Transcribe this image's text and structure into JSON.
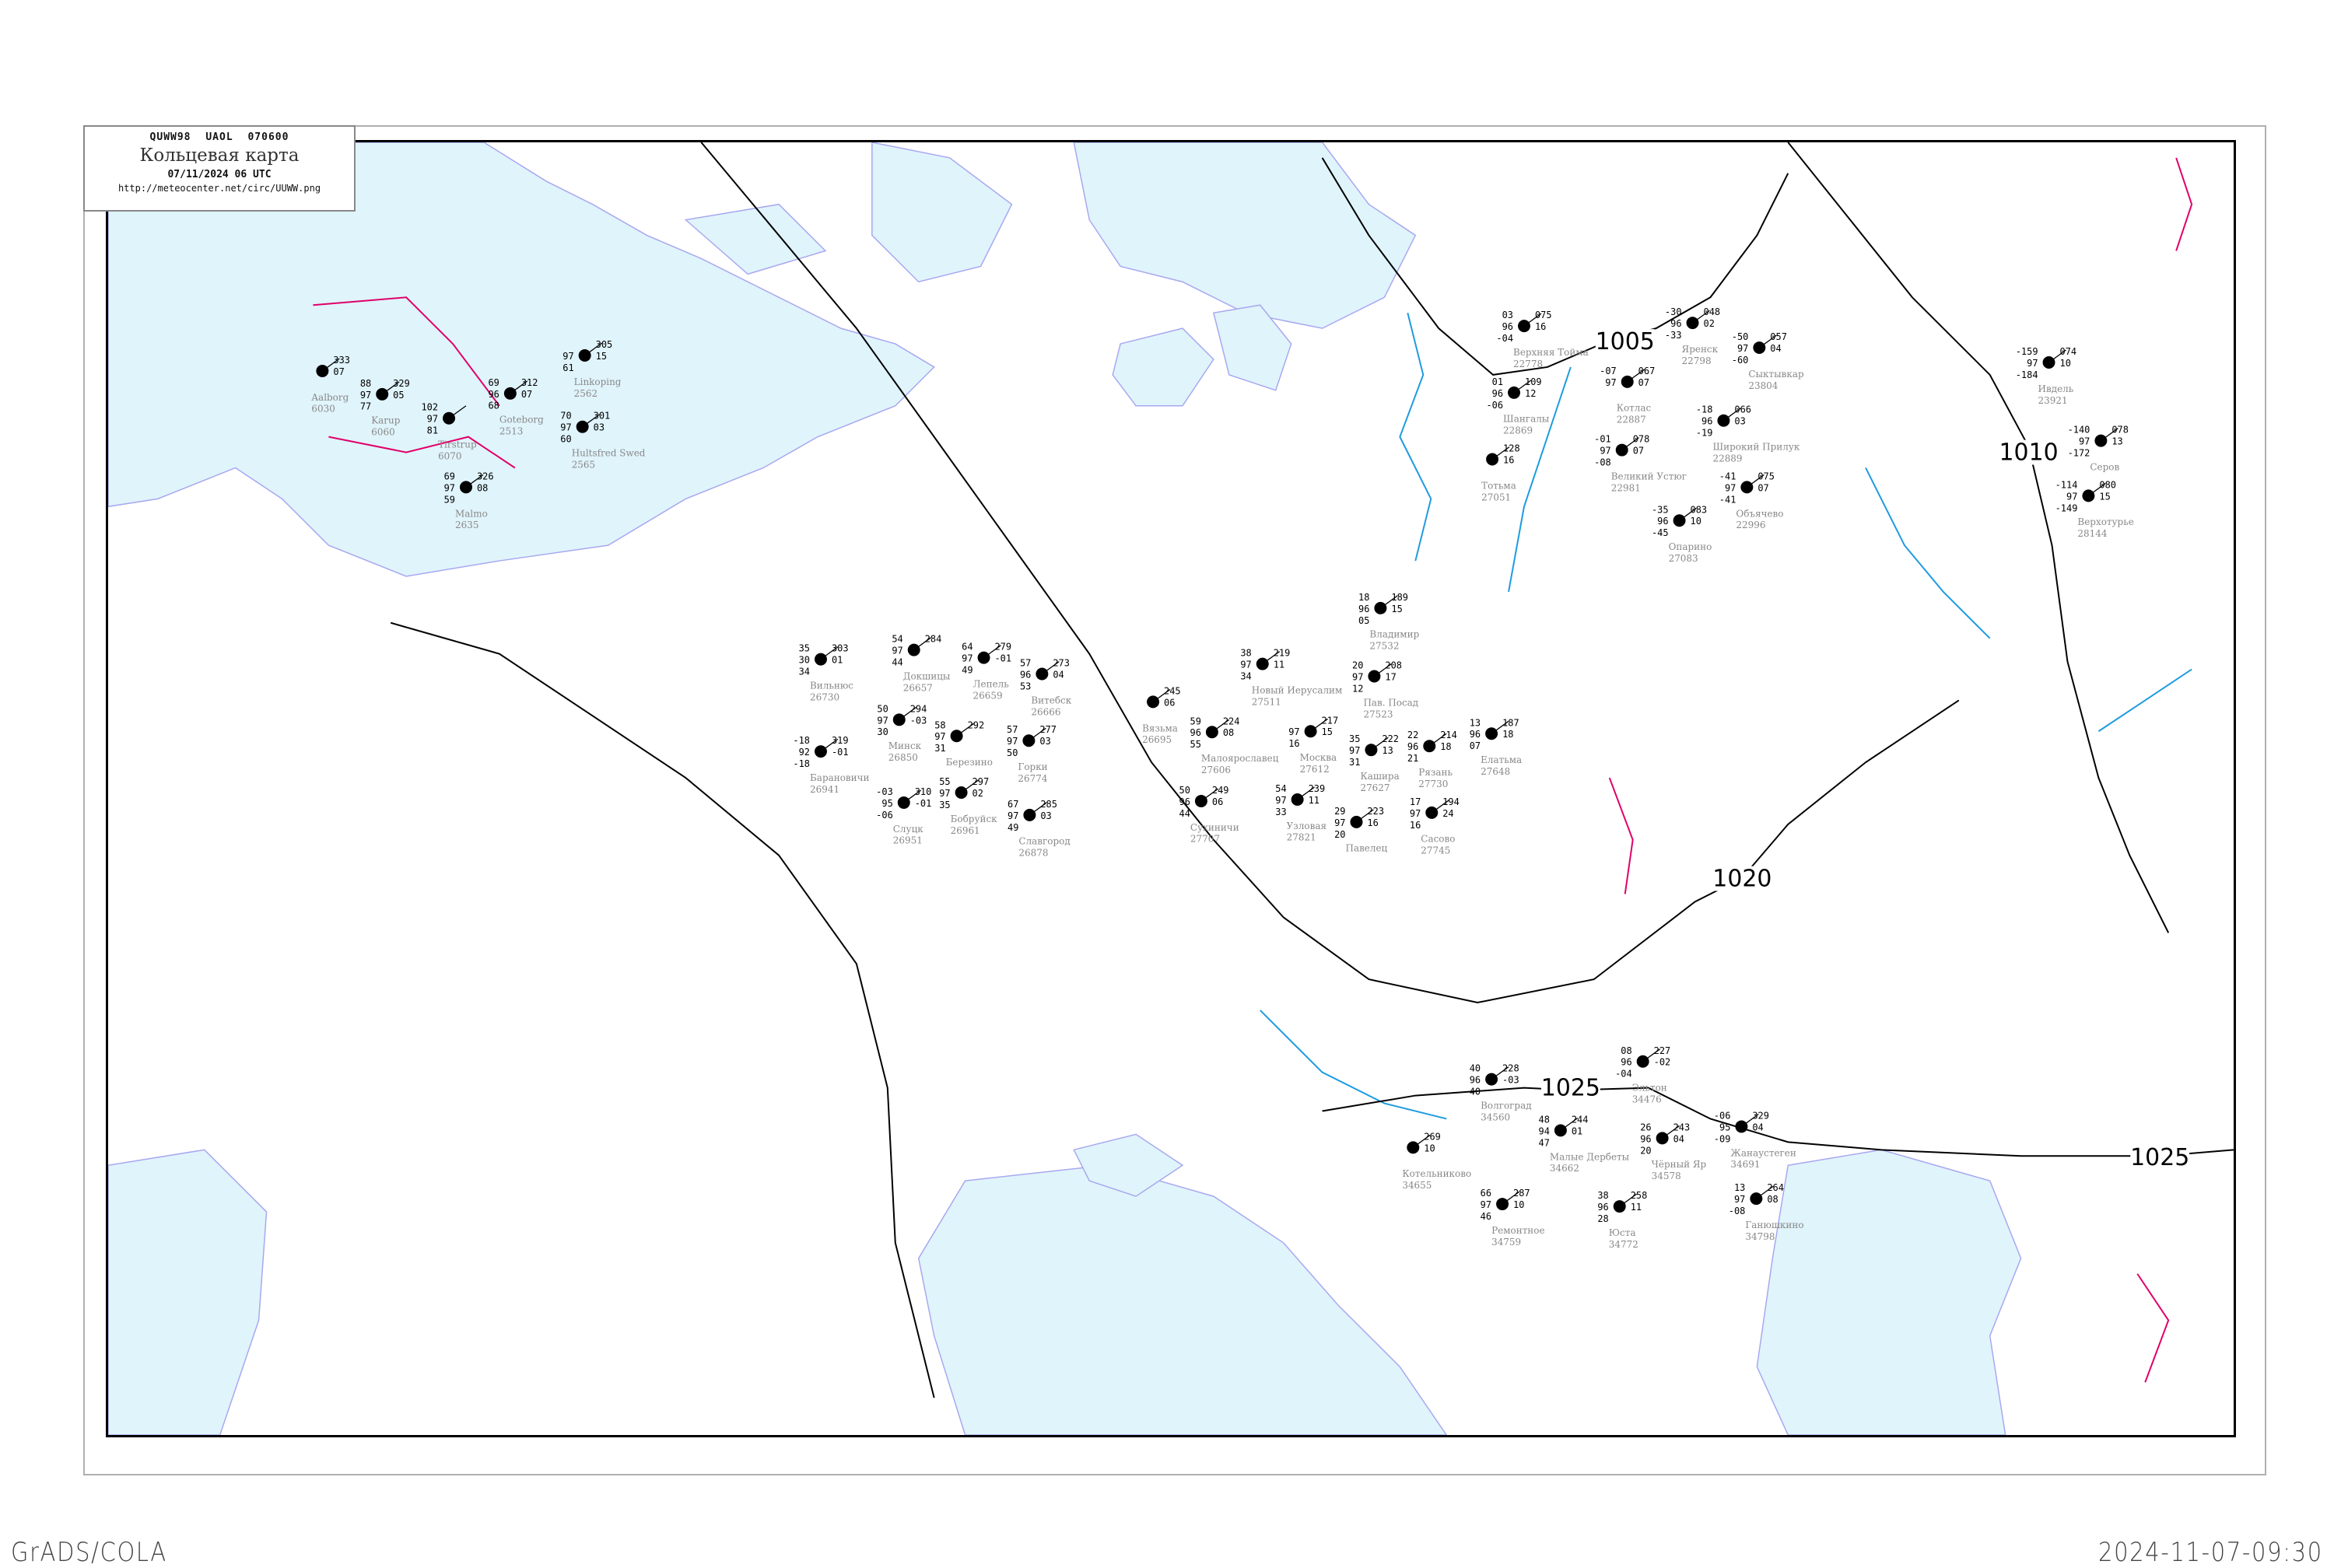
{
  "header": {
    "code_line": "QUWW98   UAOL   070600",
    "title": "Кольцевая карта",
    "date": "07/11/2024 06 UTC",
    "url": "http://meteocenter.net/circ/UUWW.png"
  },
  "footer": {
    "left": "GrADS/COLA",
    "right": "2024-11-07-09:30"
  },
  "colors": {
    "water": "#e0f4fb",
    "coast": "#a8a8f0",
    "isobar": "#000000",
    "front": "#e0006a",
    "river": "#1e9be0",
    "station_name": "#888888"
  },
  "isobars": [
    {
      "label": "1005"
    },
    {
      "label": "1010"
    },
    {
      "label": "1020"
    },
    {
      "label": "1025"
    },
    {
      "label": "1025"
    }
  ],
  "stations": [
    {
      "name": "Верхняя Тойма",
      "id": "22778",
      "t": "03",
      "td": "-04",
      "vis": "96",
      "p": "075",
      "tend": "16"
    },
    {
      "name": "Яренск",
      "id": "22798",
      "t": "-30",
      "td": "-33",
      "vis": "96",
      "p": "048",
      "tend": "02"
    },
    {
      "name": "Сыктывкар",
      "id": "23804",
      "t": "-50",
      "td": "-60",
      "vis": "97",
      "p": "057",
      "tend": "04"
    },
    {
      "name": "Шангалы",
      "id": "22869",
      "t": "01",
      "td": "-06",
      "vis": "96",
      "p": "109",
      "tend": "12"
    },
    {
      "name": "Котлас",
      "id": "22887",
      "t": "-07",
      "td": "",
      "vis": "97",
      "p": "067",
      "tend": "07"
    },
    {
      "name": "Великий Устюг",
      "id": "22981",
      "t": "-01",
      "td": "-08",
      "vis": "97",
      "p": "078",
      "tend": "07"
    },
    {
      "name": "Широкий Прилук",
      "id": "22889",
      "t": "-18",
      "td": "-19",
      "vis": "96",
      "p": "066",
      "tend": "03"
    },
    {
      "name": "Объячево",
      "id": "22996",
      "t": "-41",
      "td": "-41",
      "vis": "97",
      "p": "075",
      "tend": "07"
    },
    {
      "name": "Опарино",
      "id": "27083",
      "t": "-35",
      "td": "-45",
      "vis": "96",
      "p": "083",
      "tend": "10"
    },
    {
      "name": "Тотьма",
      "id": "27051",
      "t": "",
      "td": "",
      "vis": "",
      "p": "128",
      "tend": "16"
    },
    {
      "name": "Вильнюс",
      "id": "26730",
      "t": "35",
      "td": "34",
      "vis": "30",
      "p": "303",
      "tend": "01"
    },
    {
      "name": "Минск",
      "id": "26850",
      "t": "50",
      "td": "30",
      "vis": "97",
      "p": "294",
      "tend": "-03"
    },
    {
      "name": "Березино",
      "id": "",
      "t": "58",
      "td": "31",
      "vis": "97",
      "p": "292",
      "tend": ""
    },
    {
      "name": "Докшицы",
      "id": "26657",
      "t": "54",
      "td": "44",
      "vis": "97",
      "p": "284",
      "tend": ""
    },
    {
      "name": "Лепель",
      "id": "26659",
      "t": "64",
      "td": "49",
      "vis": "97",
      "p": "279",
      "tend": "-01"
    },
    {
      "name": "Витебск",
      "id": "26666",
      "t": "57",
      "td": "53",
      "vis": "96",
      "p": "273",
      "tend": "04"
    },
    {
      "name": "Барановичи",
      "id": "26941",
      "t": "-18",
      "td": "-18",
      "vis": "92",
      "p": "319",
      "tend": "-01"
    },
    {
      "name": "Слуцк",
      "id": "26951",
      "t": "-03",
      "td": "-06",
      "vis": "95",
      "p": "310",
      "tend": "-01"
    },
    {
      "name": "Бобруйск",
      "id": "26961",
      "t": "55",
      "td": "35",
      "vis": "97",
      "p": "297",
      "tend": "02"
    },
    {
      "name": "Горки",
      "id": "26774",
      "t": "57",
      "td": "50",
      "vis": "97",
      "p": "277",
      "tend": "03"
    },
    {
      "name": "Славгород",
      "id": "26878",
      "t": "67",
      "td": "49",
      "vis": "97",
      "p": "285",
      "tend": "03"
    },
    {
      "name": "Aalborg",
      "id": "6030",
      "t": "",
      "td": "",
      "vis": "",
      "p": "333",
      "tend": "07"
    },
    {
      "name": "Karup",
      "id": "6060",
      "t": "88",
      "td": "77",
      "vis": "97",
      "p": "329",
      "tend": "05"
    },
    {
      "name": "Tirstrup",
      "id": "6070",
      "t": "102",
      "td": "81",
      "vis": "97",
      "p": "",
      "tend": ""
    },
    {
      "name": "Goteborg",
      "id": "2513",
      "t": "69",
      "td": "68",
      "vis": "96",
      "p": "312",
      "tend": "07"
    },
    {
      "name": "Linkoping",
      "id": "2562",
      "t": "",
      "td": "61",
      "vis": "97",
      "p": "305",
      "tend": "15"
    },
    {
      "name": "Hultsfred Swed",
      "id": "2565",
      "t": "70",
      "td": "60",
      "vis": "97",
      "p": "301",
      "tend": "03"
    },
    {
      "name": "Malmo",
      "id": "2635",
      "t": "69",
      "td": "59",
      "vis": "97",
      "p": "326",
      "tend": "08"
    },
    {
      "name": "Ивдель",
      "id": "23921",
      "t": "-159",
      "td": "-184",
      "vis": "97",
      "p": "074",
      "tend": "10"
    },
    {
      "name": "Серов",
      "id": "",
      "t": "-140",
      "td": "-172",
      "vis": "97",
      "p": "078",
      "tend": "13"
    },
    {
      "name": "Верхотурье",
      "id": "28144",
      "t": "-114",
      "td": "-149",
      "vis": "97",
      "p": "080",
      "tend": "15"
    },
    {
      "name": "Волгоград",
      "id": "34560",
      "t": "40",
      "td": "40",
      "vis": "96",
      "p": "228",
      "tend": "-03"
    },
    {
      "name": "Эльтон",
      "id": "34476",
      "t": "08",
      "td": "-04",
      "vis": "96",
      "p": "227",
      "tend": "-02"
    },
    {
      "name": "Малые Дербеты",
      "id": "34662",
      "t": "48",
      "td": "47",
      "vis": "94",
      "p": "244",
      "tend": "01"
    },
    {
      "name": "Чёрный Яр",
      "id": "34578",
      "t": "26",
      "td": "20",
      "vis": "96",
      "p": "243",
      "tend": "04"
    },
    {
      "name": "Жанаустеген",
      "id": "34691",
      "t": "-06",
      "td": "-09",
      "vis": "95",
      "p": "329",
      "tend": "04"
    },
    {
      "name": "Юста",
      "id": "34772",
      "t": "38",
      "td": "28",
      "vis": "96",
      "p": "258",
      "tend": "11"
    },
    {
      "name": "Ганюшкино",
      "id": "34798",
      "t": "13",
      "td": "-08",
      "vis": "97",
      "p": "264",
      "tend": "08"
    },
    {
      "name": "Ремонтное",
      "id": "34759",
      "t": "66",
      "td": "46",
      "vis": "97",
      "p": "287",
      "tend": "10"
    },
    {
      "name": "Котельниково",
      "id": "34655",
      "t": "",
      "td": "",
      "vis": "",
      "p": "269",
      "tend": "10"
    },
    {
      "name": "Новый Иерусалим",
      "id": "27511",
      "t": "38",
      "td": "34",
      "vis": "97",
      "p": "219",
      "tend": "11"
    },
    {
      "name": "Москва",
      "id": "27612",
      "t": "",
      "td": "16",
      "vis": "97",
      "p": "217",
      "tend": "15"
    },
    {
      "name": "Пав. Посад",
      "id": "27523",
      "t": "20",
      "td": "12",
      "vis": "97",
      "p": "208",
      "tend": "17"
    },
    {
      "name": "Владимир",
      "id": "27532",
      "t": "18",
      "td": "05",
      "vis": "96",
      "p": "189",
      "tend": "15"
    },
    {
      "name": "Малоярославец",
      "id": "27606",
      "t": "59",
      "td": "55",
      "vis": "96",
      "p": "224",
      "tend": "08"
    },
    {
      "name": "Кашира",
      "id": "27627",
      "t": "35",
      "td": "31",
      "vis": "97",
      "p": "222",
      "tend": "13"
    },
    {
      "name": "Рязань",
      "id": "27730",
      "t": "22",
      "td": "21",
      "vis": "96",
      "p": "214",
      "tend": "18"
    },
    {
      "name": "Сасово",
      "id": "27745",
      "t": "17",
      "td": "16",
      "vis": "97",
      "p": "194",
      "tend": "24"
    },
    {
      "name": "Елатьма",
      "id": "27648",
      "t": "13",
      "td": "07",
      "vis": "96",
      "p": "187",
      "tend": "18"
    },
    {
      "name": "Узловая",
      "id": "27821",
      "t": "54",
      "td": "33",
      "vis": "97",
      "p": "239",
      "tend": "11"
    },
    {
      "name": "Павелец",
      "id": "",
      "t": "29",
      "td": "20",
      "vis": "97",
      "p": "223",
      "tend": "16"
    },
    {
      "name": "Вязьма",
      "id": "26695",
      "t": "",
      "td": "",
      "vis": "",
      "p": "245",
      "tend": "06"
    },
    {
      "name": "Сухиничи",
      "id": "27707",
      "t": "50",
      "td": "44",
      "vis": "96",
      "p": "249",
      "tend": "06"
    }
  ]
}
